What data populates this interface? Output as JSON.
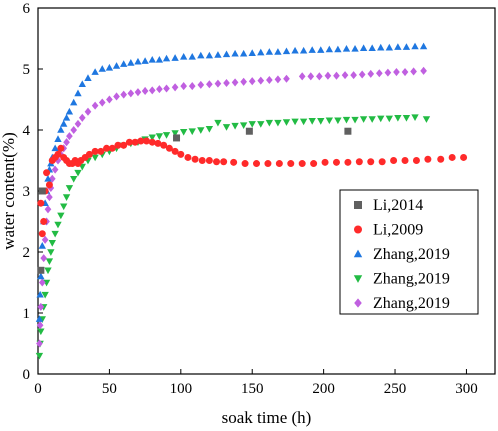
{
  "chart_data": {
    "type": "scatter",
    "xlabel": "soak time (h)",
    "ylabel": "water content(%)",
    "xlim": [
      0,
      320
    ],
    "ylim": [
      0,
      6
    ],
    "xticks": [
      0,
      50,
      100,
      150,
      200,
      250,
      300
    ],
    "yticks": [
      0,
      1,
      2,
      3,
      4,
      5,
      6
    ],
    "grid": false,
    "legend_position": "center-right",
    "series": [
      {
        "name": "Li,2014",
        "marker": "square",
        "color": "#606060",
        "points": [
          [
            2,
            1.7
          ],
          [
            3,
            3.0
          ],
          [
            97,
            3.87
          ],
          [
            148,
            3.98
          ],
          [
            217,
            3.98
          ]
        ]
      },
      {
        "name": "Li,2009",
        "marker": "circle",
        "color": "#ff2a2a",
        "points": [
          [
            2,
            2.8
          ],
          [
            3,
            2.3
          ],
          [
            4,
            2.5
          ],
          [
            5,
            3.0
          ],
          [
            6,
            3.3
          ],
          [
            8,
            3.1
          ],
          [
            10,
            3.5
          ],
          [
            12,
            3.55
          ],
          [
            14,
            3.6
          ],
          [
            16,
            3.7
          ],
          [
            18,
            3.55
          ],
          [
            20,
            3.5
          ],
          [
            22,
            3.45
          ],
          [
            24,
            3.45
          ],
          [
            26,
            3.5
          ],
          [
            28,
            3.45
          ],
          [
            30,
            3.5
          ],
          [
            33,
            3.55
          ],
          [
            36,
            3.6
          ],
          [
            40,
            3.65
          ],
          [
            44,
            3.65
          ],
          [
            48,
            3.7
          ],
          [
            52,
            3.7
          ],
          [
            56,
            3.75
          ],
          [
            60,
            3.75
          ],
          [
            64,
            3.8
          ],
          [
            68,
            3.8
          ],
          [
            72,
            3.82
          ],
          [
            76,
            3.82
          ],
          [
            80,
            3.8
          ],
          [
            84,
            3.78
          ],
          [
            88,
            3.75
          ],
          [
            92,
            3.7
          ],
          [
            96,
            3.65
          ],
          [
            100,
            3.6
          ],
          [
            105,
            3.55
          ],
          [
            110,
            3.52
          ],
          [
            115,
            3.5
          ],
          [
            120,
            3.5
          ],
          [
            125,
            3.48
          ],
          [
            130,
            3.48
          ],
          [
            137,
            3.47
          ],
          [
            145,
            3.45
          ],
          [
            153,
            3.45
          ],
          [
            161,
            3.45
          ],
          [
            169,
            3.45
          ],
          [
            177,
            3.45
          ],
          [
            185,
            3.45
          ],
          [
            193,
            3.45
          ],
          [
            201,
            3.47
          ],
          [
            209,
            3.47
          ],
          [
            217,
            3.47
          ],
          [
            225,
            3.48
          ],
          [
            233,
            3.48
          ],
          [
            241,
            3.48
          ],
          [
            249,
            3.5
          ],
          [
            257,
            3.5
          ],
          [
            265,
            3.5
          ],
          [
            273,
            3.52
          ],
          [
            282,
            3.52
          ],
          [
            290,
            3.55
          ],
          [
            298,
            3.55
          ]
        ]
      },
      {
        "name": "Zhang,2019",
        "marker": "triangle-up",
        "color": "#1f77e0",
        "points": [
          [
            1,
            0.9
          ],
          [
            1.5,
            1.3
          ],
          [
            2,
            1.6
          ],
          [
            3,
            2.1
          ],
          [
            4,
            2.5
          ],
          [
            5,
            2.8
          ],
          [
            6,
            3.0
          ],
          [
            7,
            3.2
          ],
          [
            8,
            3.35
          ],
          [
            9,
            3.45
          ],
          [
            10,
            3.55
          ],
          [
            12,
            3.7
          ],
          [
            14,
            3.85
          ],
          [
            16,
            4.0
          ],
          [
            18,
            4.1
          ],
          [
            20,
            4.2
          ],
          [
            22,
            4.3
          ],
          [
            25,
            4.45
          ],
          [
            28,
            4.6
          ],
          [
            31,
            4.75
          ],
          [
            35,
            4.85
          ],
          [
            40,
            4.95
          ],
          [
            45,
            5.0
          ],
          [
            50,
            5.02
          ],
          [
            55,
            5.05
          ],
          [
            60,
            5.08
          ],
          [
            65,
            5.1
          ],
          [
            70,
            5.12
          ],
          [
            75,
            5.13
          ],
          [
            80,
            5.15
          ],
          [
            85,
            5.15
          ],
          [
            90,
            5.17
          ],
          [
            96,
            5.18
          ],
          [
            102,
            5.2
          ],
          [
            108,
            5.2
          ],
          [
            114,
            5.22
          ],
          [
            120,
            5.22
          ],
          [
            126,
            5.23
          ],
          [
            132,
            5.24
          ],
          [
            138,
            5.25
          ],
          [
            144,
            5.25
          ],
          [
            150,
            5.26
          ],
          [
            156,
            5.27
          ],
          [
            162,
            5.28
          ],
          [
            168,
            5.28
          ],
          [
            174,
            5.29
          ],
          [
            180,
            5.3
          ],
          [
            186,
            5.3
          ],
          [
            192,
            5.31
          ],
          [
            198,
            5.31
          ],
          [
            204,
            5.32
          ],
          [
            210,
            5.32
          ],
          [
            216,
            5.33
          ],
          [
            222,
            5.33
          ],
          [
            228,
            5.34
          ],
          [
            234,
            5.34
          ],
          [
            240,
            5.35
          ],
          [
            246,
            5.35
          ],
          [
            252,
            5.36
          ],
          [
            258,
            5.36
          ],
          [
            264,
            5.37
          ],
          [
            270,
            5.37
          ]
        ]
      },
      {
        "name": "Zhang,2019",
        "marker": "triangle-down",
        "color": "#22bb44",
        "points": [
          [
            1,
            0.3
          ],
          [
            1.5,
            0.5
          ],
          [
            2,
            0.7
          ],
          [
            3,
            0.9
          ],
          [
            4,
            1.1
          ],
          [
            5,
            1.3
          ],
          [
            6,
            1.5
          ],
          [
            7,
            1.7
          ],
          [
            8,
            1.85
          ],
          [
            9,
            2.0
          ],
          [
            10,
            2.15
          ],
          [
            12,
            2.3
          ],
          [
            14,
            2.45
          ],
          [
            16,
            2.6
          ],
          [
            18,
            2.75
          ],
          [
            20,
            2.9
          ],
          [
            22,
            3.05
          ],
          [
            25,
            3.2
          ],
          [
            28,
            3.3
          ],
          [
            31,
            3.4
          ],
          [
            35,
            3.5
          ],
          [
            40,
            3.55
          ],
          [
            45,
            3.6
          ],
          [
            50,
            3.65
          ],
          [
            55,
            3.7
          ],
          [
            60,
            3.75
          ],
          [
            65,
            3.78
          ],
          [
            70,
            3.8
          ],
          [
            75,
            3.85
          ],
          [
            80,
            3.88
          ],
          [
            85,
            3.9
          ],
          [
            90,
            3.92
          ],
          [
            96,
            3.95
          ],
          [
            102,
            3.97
          ],
          [
            108,
            3.98
          ],
          [
            114,
            4.0
          ],
          [
            120,
            4.02
          ],
          [
            126,
            4.12
          ],
          [
            132,
            4.05
          ],
          [
            138,
            4.07
          ],
          [
            144,
            4.08
          ],
          [
            150,
            4.1
          ],
          [
            156,
            4.1
          ],
          [
            162,
            4.12
          ],
          [
            168,
            4.12
          ],
          [
            174,
            4.13
          ],
          [
            180,
            4.14
          ],
          [
            186,
            4.14
          ],
          [
            192,
            4.15
          ],
          [
            198,
            4.15
          ],
          [
            204,
            4.16
          ],
          [
            210,
            4.16
          ],
          [
            216,
            4.17
          ],
          [
            222,
            4.17
          ],
          [
            228,
            4.18
          ],
          [
            234,
            4.18
          ],
          [
            240,
            4.19
          ],
          [
            246,
            4.19
          ],
          [
            252,
            4.2
          ],
          [
            258,
            4.2
          ],
          [
            264,
            4.21
          ],
          [
            272,
            4.18
          ]
        ]
      },
      {
        "name": "Zhang,2019",
        "marker": "diamond",
        "color": "#c060e0",
        "points": [
          [
            1,
            0.5
          ],
          [
            1.5,
            0.8
          ],
          [
            2,
            1.1
          ],
          [
            3,
            1.5
          ],
          [
            4,
            1.9
          ],
          [
            5,
            2.2
          ],
          [
            6,
            2.5
          ],
          [
            7,
            2.7
          ],
          [
            8,
            2.9
          ],
          [
            9,
            3.05
          ],
          [
            10,
            3.2
          ],
          [
            12,
            3.35
          ],
          [
            14,
            3.5
          ],
          [
            16,
            3.6
          ],
          [
            18,
            3.7
          ],
          [
            20,
            3.8
          ],
          [
            22,
            3.9
          ],
          [
            25,
            4.0
          ],
          [
            28,
            4.1
          ],
          [
            31,
            4.2
          ],
          [
            35,
            4.3
          ],
          [
            40,
            4.4
          ],
          [
            45,
            4.45
          ],
          [
            50,
            4.5
          ],
          [
            55,
            4.55
          ],
          [
            60,
            4.58
          ],
          [
            65,
            4.6
          ],
          [
            70,
            4.62
          ],
          [
            75,
            4.64
          ],
          [
            80,
            4.65
          ],
          [
            85,
            4.67
          ],
          [
            90,
            4.68
          ],
          [
            96,
            4.7
          ],
          [
            102,
            4.72
          ],
          [
            108,
            4.72
          ],
          [
            114,
            4.74
          ],
          [
            120,
            4.75
          ],
          [
            126,
            4.76
          ],
          [
            132,
            4.77
          ],
          [
            138,
            4.78
          ],
          [
            144,
            4.79
          ],
          [
            150,
            4.8
          ],
          [
            156,
            4.81
          ],
          [
            162,
            4.82
          ],
          [
            168,
            4.83
          ],
          [
            174,
            4.84
          ],
          [
            185,
            4.88
          ],
          [
            191,
            4.88
          ],
          [
            197,
            4.88
          ],
          [
            203,
            4.89
          ],
          [
            209,
            4.89
          ],
          [
            215,
            4.9
          ],
          [
            221,
            4.9
          ],
          [
            227,
            4.91
          ],
          [
            233,
            4.92
          ],
          [
            239,
            4.93
          ],
          [
            245,
            4.94
          ],
          [
            251,
            4.95
          ],
          [
            257,
            4.95
          ],
          [
            263,
            4.96
          ],
          [
            270,
            4.97
          ]
        ]
      }
    ]
  }
}
